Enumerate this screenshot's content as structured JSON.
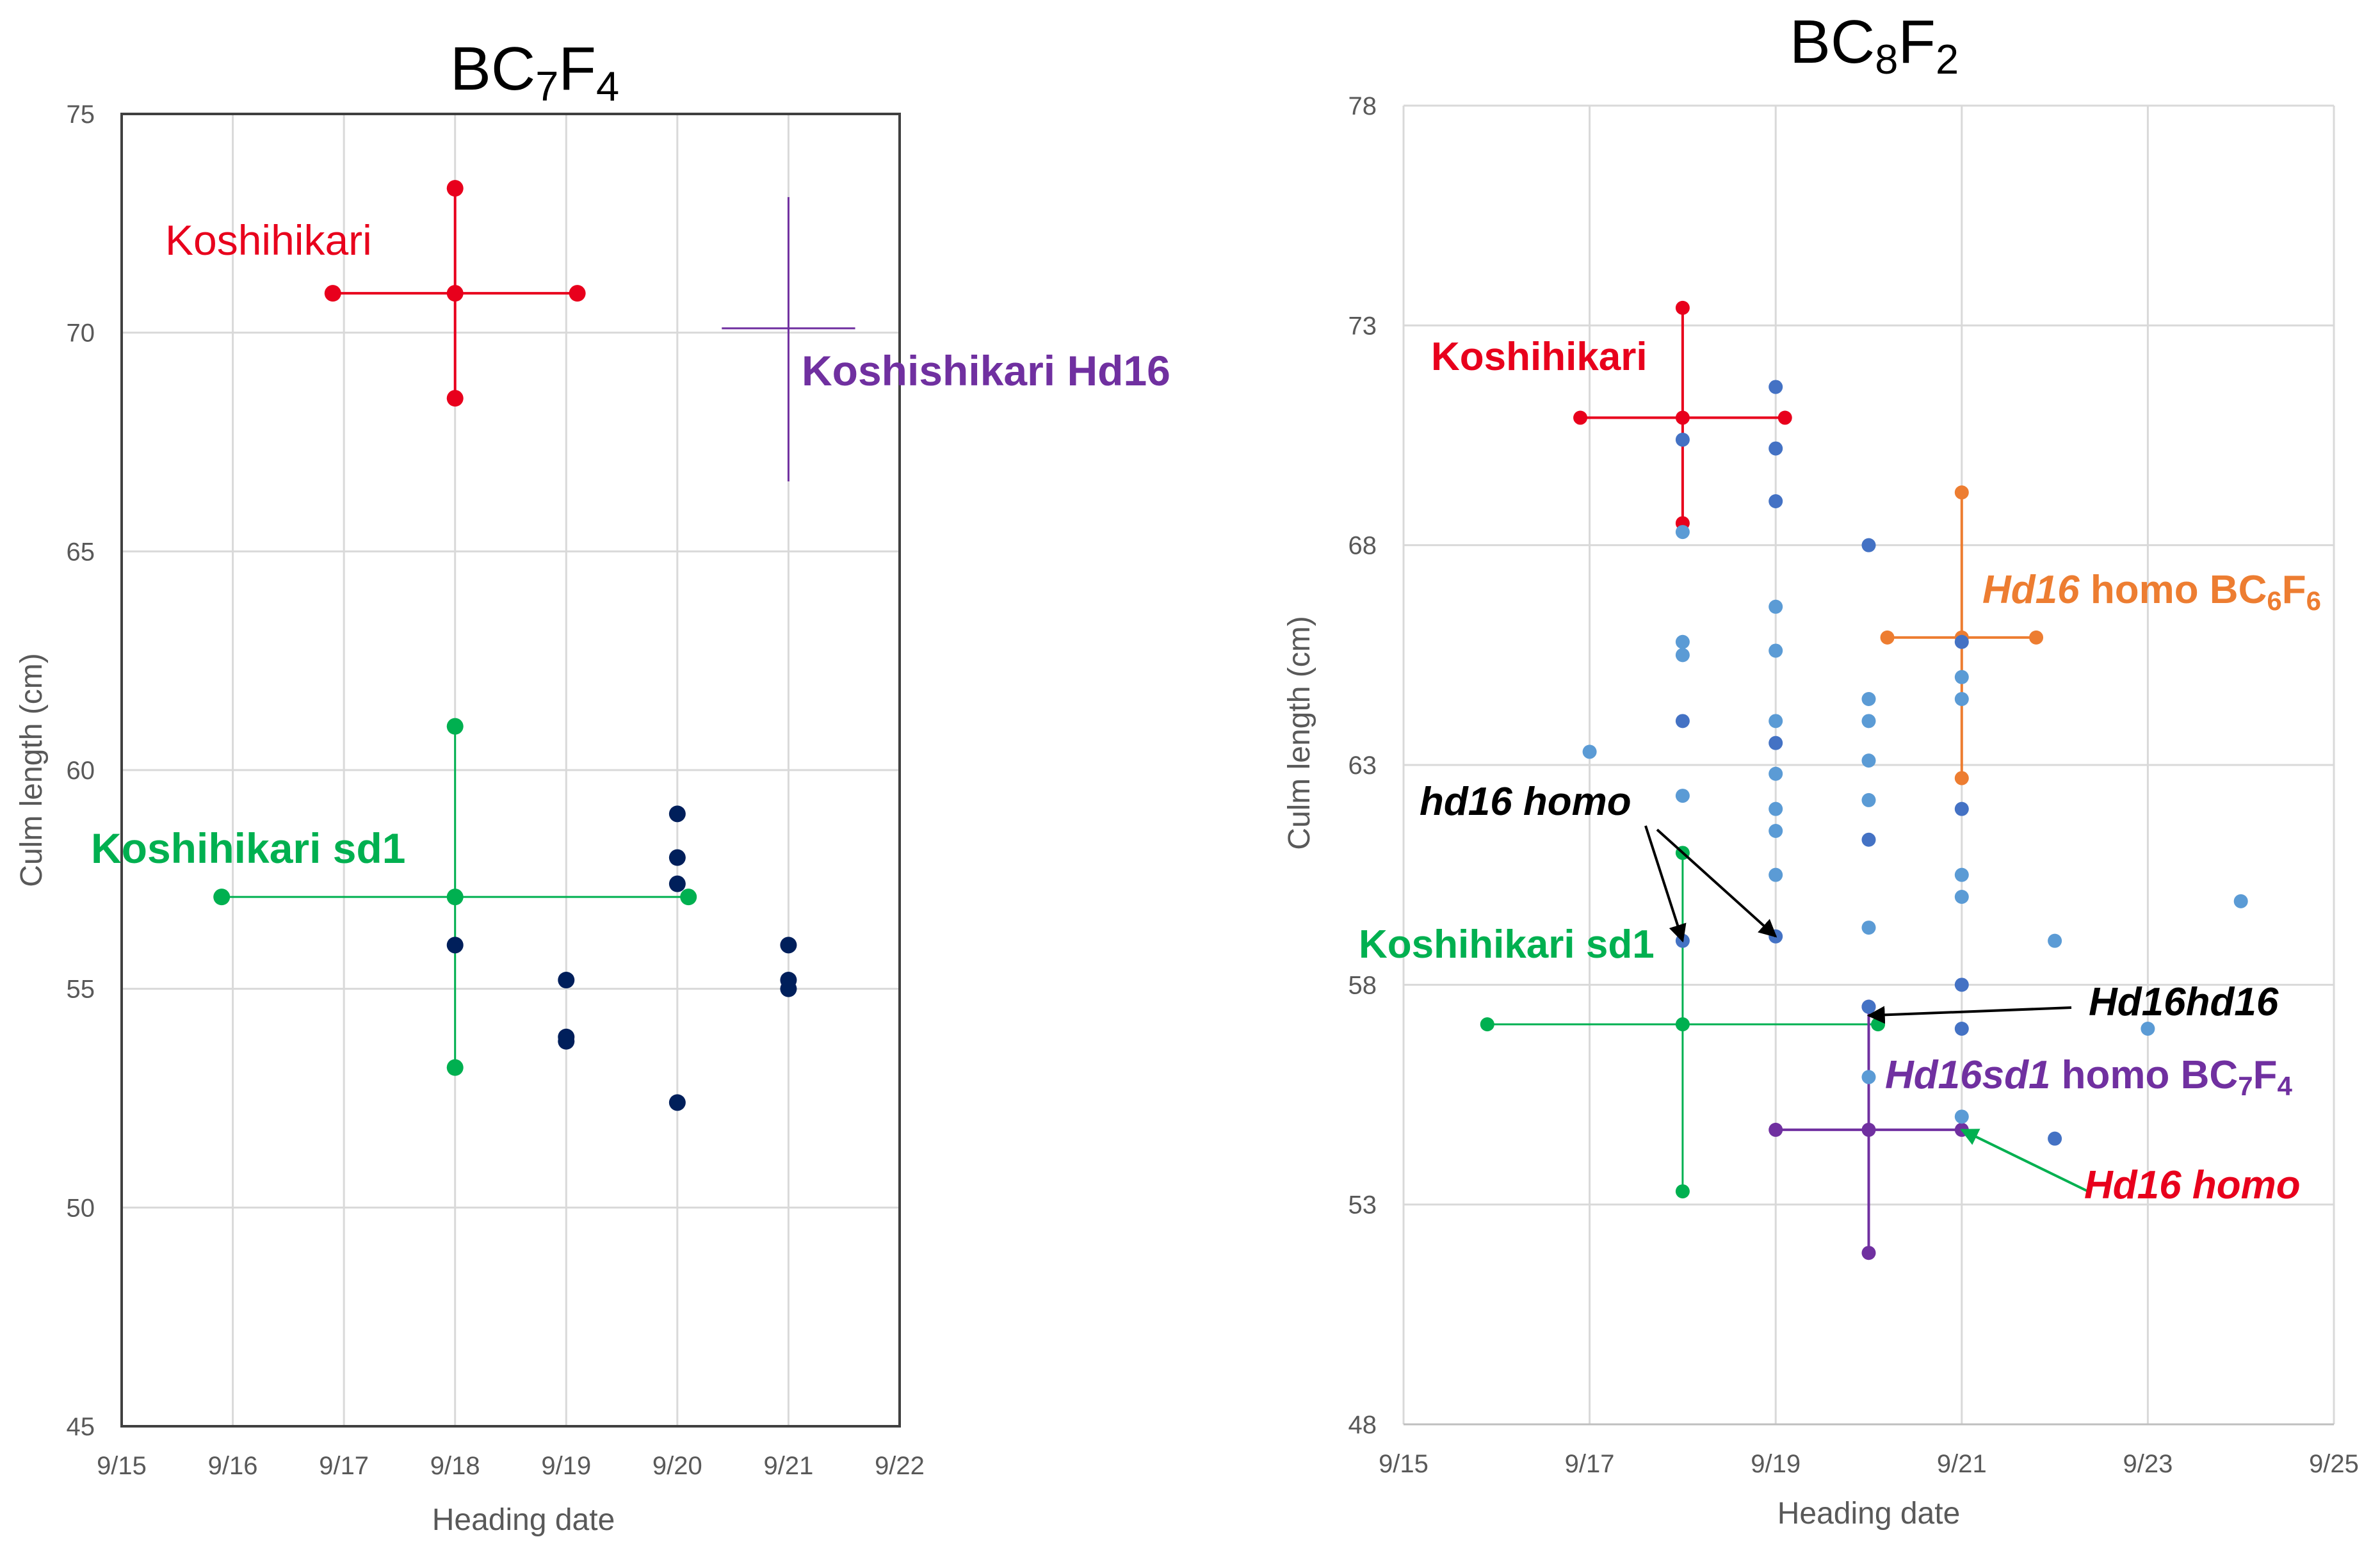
{
  "chart_data": [
    {
      "type": "scatter",
      "title": "BC7F4",
      "title_parts": [
        {
          "text": "BC",
          "sub": false
        },
        {
          "text": "7",
          "sub": true
        },
        {
          "text": "F",
          "sub": false
        },
        {
          "text": "4",
          "sub": true
        }
      ],
      "xlabel": "Heading date",
      "ylabel": "Culm length (cm)",
      "x_axis_type": "date",
      "xlim": [
        "9/15",
        "9/22"
      ],
      "x_ticks": [
        "9/15",
        "9/16",
        "9/17",
        "9/18",
        "9/19",
        "9/20",
        "9/21",
        "9/22"
      ],
      "ylim": [
        45,
        75
      ],
      "y_ticks": [
        45,
        50,
        55,
        60,
        65,
        70,
        75
      ],
      "grid": true,
      "legend": "none",
      "colors": {
        "plot_border": "#404040"
      },
      "series": [
        {
          "color": "#001f5b",
          "marker": "circle",
          "points": [
            {
              "x": "9/18",
              "y": 56.0
            },
            {
              "x": "9/19",
              "y": 55.2
            },
            {
              "x": "9/19",
              "y": 53.9
            },
            {
              "x": "9/19",
              "y": 53.8
            },
            {
              "x": "9/20",
              "y": 59.0
            },
            {
              "x": "9/20",
              "y": 58.0
            },
            {
              "x": "9/20",
              "y": 57.4
            },
            {
              "x": "9/20",
              "y": 52.4
            },
            {
              "x": "9/21",
              "y": 56.0
            },
            {
              "x": "9/21",
              "y": 55.2
            },
            {
              "x": "9/21",
              "y": 55.0
            }
          ]
        }
      ],
      "crosses": [
        {
          "label": "Koshihikari",
          "color": "#e8001c",
          "line_width": 4,
          "markers": true,
          "center": {
            "x": "9/18",
            "y": 70.9
          },
          "x_range": [
            "9/16.9",
            "9/19.1"
          ],
          "y_range": [
            68.5,
            73.3
          ]
        },
        {
          "label": "Koshihikari sd1",
          "color": "#00b050",
          "line_width": 3,
          "markers": true,
          "center": {
            "x": "9/18",
            "y": 57.1
          },
          "x_range": [
            "9/15.9",
            "9/20.1"
          ],
          "y_range": [
            53.2,
            61.0
          ]
        },
        {
          "label": "Koshishikari Hd16",
          "color": "#7030a0",
          "line_width": 3,
          "markers": false,
          "center": {
            "x": "9/21",
            "y": 70.1
          },
          "x_range": [
            "9/20.4",
            "9/21.6"
          ],
          "y_range": [
            66.6,
            73.1
          ]
        }
      ],
      "annotations": [
        {
          "text": "Koshihikari",
          "color": "#e8001c",
          "bold": false,
          "italic": false
        },
        {
          "text": "Koshihikari sd1",
          "color": "#00b050",
          "bold": true,
          "italic": false
        },
        {
          "text": "Koshishikari Hd16",
          "color": "#7030a0",
          "bold": true,
          "italic": false
        }
      ]
    },
    {
      "type": "scatter",
      "title": "BC8F2",
      "title_parts": [
        {
          "text": "BC",
          "sub": false
        },
        {
          "text": "8",
          "sub": true
        },
        {
          "text": "F",
          "sub": false
        },
        {
          "text": "2",
          "sub": true
        }
      ],
      "xlabel": "Heading date",
      "ylabel": "Culm length (cm)",
      "x_axis_type": "date",
      "xlim": [
        "9/15",
        "9/25"
      ],
      "x_ticks": [
        "9/15",
        "9/17",
        "9/19",
        "9/21",
        "9/23",
        "9/25"
      ],
      "ylim": [
        48,
        78
      ],
      "y_ticks": [
        48,
        53,
        58,
        63,
        68,
        73,
        78
      ],
      "grid": true,
      "legend": "none",
      "series": [
        {
          "color": "#5b9bd5",
          "marker": "circle",
          "points": [
            {
              "x": "9/17",
              "y": 63.3
            },
            {
              "x": "9/18",
              "y": 68.3
            },
            {
              "x": "9/18",
              "y": 65.8
            },
            {
              "x": "9/18",
              "y": 65.5
            },
            {
              "x": "9/18",
              "y": 62.3
            },
            {
              "x": "9/19",
              "y": 66.6
            },
            {
              "x": "9/19",
              "y": 65.6
            },
            {
              "x": "9/19",
              "y": 64.0
            },
            {
              "x": "9/19",
              "y": 62.8
            },
            {
              "x": "9/19",
              "y": 62.0
            },
            {
              "x": "9/19",
              "y": 61.5
            },
            {
              "x": "9/19",
              "y": 60.5
            },
            {
              "x": "9/20",
              "y": 64.5
            },
            {
              "x": "9/20",
              "y": 64.0
            },
            {
              "x": "9/20",
              "y": 63.1
            },
            {
              "x": "9/20",
              "y": 62.2
            },
            {
              "x": "9/20",
              "y": 59.3
            },
            {
              "x": "9/20",
              "y": 55.9
            },
            {
              "x": "9/21",
              "y": 65.0
            },
            {
              "x": "9/21",
              "y": 64.5
            },
            {
              "x": "9/21",
              "y": 60.5
            },
            {
              "x": "9/21",
              "y": 60.0
            },
            {
              "x": "9/21",
              "y": 55.0
            },
            {
              "x": "9/22",
              "y": 59.0
            },
            {
              "x": "9/23",
              "y": 57.0
            },
            {
              "x": "9/24",
              "y": 59.9
            }
          ]
        },
        {
          "color": "#4472c4",
          "marker": "circle",
          "points": [
            {
              "x": "9/18",
              "y": 70.4
            },
            {
              "x": "9/18",
              "y": 64.0
            },
            {
              "x": "9/18",
              "y": 59.0
            },
            {
              "x": "9/19",
              "y": 71.6
            },
            {
              "x": "9/19",
              "y": 70.2
            },
            {
              "x": "9/19",
              "y": 69.0
            },
            {
              "x": "9/19",
              "y": 63.5
            },
            {
              "x": "9/19",
              "y": 59.1
            },
            {
              "x": "9/20",
              "y": 68.0
            },
            {
              "x": "9/20",
              "y": 61.3
            },
            {
              "x": "9/20",
              "y": 57.5
            },
            {
              "x": "9/21",
              "y": 65.8
            },
            {
              "x": "9/21",
              "y": 62.0
            },
            {
              "x": "9/21",
              "y": 58.0
            },
            {
              "x": "9/21",
              "y": 57.0
            },
            {
              "x": "9/22",
              "y": 54.5
            }
          ]
        }
      ],
      "crosses": [
        {
          "label": "Koshihikari",
          "color": "#e8001c",
          "line_width": 4,
          "markers": true,
          "center": {
            "x": "9/18",
            "y": 70.9
          },
          "x_range": [
            "9/16.9",
            "9/19.1"
          ],
          "y_range": [
            68.5,
            73.4
          ]
        },
        {
          "label": "Koshihikari sd1",
          "color": "#00b050",
          "line_width": 3,
          "markers": true,
          "center": {
            "x": "9/18",
            "y": 57.1
          },
          "x_range": [
            "9/15.9",
            "9/20.1"
          ],
          "y_range": [
            53.3,
            61.0
          ]
        },
        {
          "label": "Hd16 homo BC6F6",
          "color": "#ed7d31",
          "line_width": 4,
          "markers": true,
          "center": {
            "x": "9/21",
            "y": 65.9
          },
          "x_range": [
            "9/20.2",
            "9/21.8"
          ],
          "y_range": [
            62.7,
            69.2
          ]
        },
        {
          "label": "Hd16sd1 homo BC7F4",
          "color": "#7030a0",
          "line_width": 4,
          "markers": true,
          "center": {
            "x": "9/20",
            "y": 54.7
          },
          "x_range": [
            "9/19",
            "9/21"
          ],
          "y_range": [
            51.9,
            57.5
          ]
        }
      ],
      "annotations": [
        {
          "text": "Koshihikari",
          "color": "#e8001c",
          "bold": true,
          "italic": false,
          "parts": [
            {
              "text": "Koshihikari",
              "italic": false
            }
          ]
        },
        {
          "text": "Hd16 homo BC6F6",
          "color": "#ed7d31",
          "bold": true,
          "parts": [
            {
              "text": "Hd16",
              "italic": true
            },
            {
              "text": " homo BC",
              "italic": false
            },
            {
              "text": "6",
              "italic": false,
              "sub": true
            },
            {
              "text": "F",
              "italic": false
            },
            {
              "text": "6",
              "italic": false,
              "sub": true
            }
          ]
        },
        {
          "text": "hd16 homo",
          "color": "#000000",
          "bold": true,
          "italic": true,
          "parts": [
            {
              "text": "hd16 homo",
              "italic": true
            }
          ]
        },
        {
          "text": "Koshihikari sd1",
          "color": "#00b050",
          "bold": true,
          "italic": false,
          "parts": [
            {
              "text": "Koshihikari sd1",
              "italic": false
            }
          ]
        },
        {
          "text": "Hd16hd16",
          "color": "#000000",
          "bold": true,
          "italic": true,
          "parts": [
            {
              "text": "Hd16hd16",
              "italic": true
            }
          ]
        },
        {
          "text": "Hd16sd1 homo BC7F4",
          "color": "#7030a0",
          "bold": true,
          "parts": [
            {
              "text": "Hd16sd1",
              "italic": true
            },
            {
              "text": " homo BC",
              "italic": false
            },
            {
              "text": "7",
              "italic": false,
              "sub": true
            },
            {
              "text": "F",
              "italic": false
            },
            {
              "text": "4",
              "italic": false,
              "sub": true
            }
          ]
        },
        {
          "text": "Hd16 homo",
          "color": "#e8001c",
          "bold": true,
          "italic": true,
          "parts": [
            {
              "text": "Hd16 homo",
              "italic": true
            }
          ]
        }
      ],
      "arrows": [
        {
          "from_label": "hd16 homo",
          "color": "#000000",
          "to": {
            "x": "9/18",
            "y": 59.0
          }
        },
        {
          "from_label": "hd16 homo",
          "color": "#000000",
          "to": {
            "x": "9/19",
            "y": 59.1
          }
        },
        {
          "from_label": "Hd16hd16",
          "color": "#000000",
          "to": {
            "x": "9/20",
            "y": 57.3
          }
        },
        {
          "from_label": "Hd16 homo",
          "color": "#00b050",
          "to": {
            "x": "9/21",
            "y": 54.7
          }
        }
      ]
    }
  ]
}
